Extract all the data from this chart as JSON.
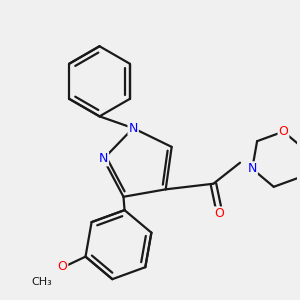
{
  "background_color": "#f0f0f0",
  "bond_color": "#1a1a1a",
  "nitrogen_color": "#0000ff",
  "oxygen_color": "#ff0000",
  "line_width": 1.6,
  "figsize": [
    3.0,
    3.0
  ],
  "dpi": 100,
  "xlim": [
    -2.0,
    2.2
  ],
  "ylim": [
    -2.2,
    2.0
  ]
}
